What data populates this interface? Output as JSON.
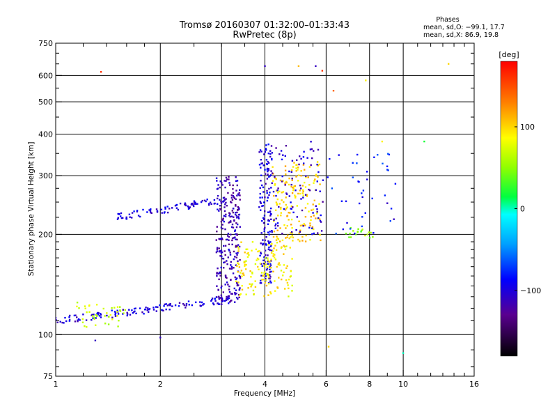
{
  "title": "Tromsø 20160307 01:32:00–01:33:43",
  "subtitle": "RwPretec (8p)",
  "stats": {
    "header": "Phases",
    "line_o": "mean, sd,O: −99.1, 17.7",
    "line_x": "mean, sd,X:  86.9, 19.8"
  },
  "colorbar": {
    "unit": "[deg]",
    "ticks": [
      {
        "value": 100,
        "label": "100"
      },
      {
        "value": 0,
        "label": "0"
      },
      {
        "value": -100,
        "label": "−100"
      }
    ],
    "range": [
      -180,
      180
    ]
  },
  "chart_data": {
    "type": "scatter",
    "title": "Tromsø 20160307 01:32:00–01:33:43",
    "subtitle": "RwPretec (8p)",
    "xlabel": "Frequency [MHz]",
    "ylabel": "Stationary phase Virtual Height [km]",
    "xscale": "log",
    "yscale": "log",
    "xlim": [
      1,
      16
    ],
    "ylim": [
      75,
      750
    ],
    "xticks": [
      {
        "value": 1,
        "label": "1"
      },
      {
        "value": 2,
        "label": "2"
      },
      {
        "value": 4,
        "label": "4"
      },
      {
        "value": 6,
        "label": "6"
      },
      {
        "value": 8,
        "label": "8"
      },
      {
        "value": 10,
        "label": "10"
      },
      {
        "value": 16,
        "label": "16"
      }
    ],
    "yticks": [
      {
        "value": 75,
        "label": "75"
      },
      {
        "value": 100,
        "label": "100"
      },
      {
        "value": 200,
        "label": "200"
      },
      {
        "value": 300,
        "label": "300"
      },
      {
        "value": 400,
        "label": "400"
      },
      {
        "value": 500,
        "label": "500"
      },
      {
        "value": 600,
        "label": "600"
      },
      {
        "value": 750,
        "label": "750"
      }
    ],
    "grid_x": [
      2,
      3,
      4,
      6,
      8,
      10
    ],
    "grid_y": [
      100,
      200,
      300,
      400,
      500,
      600
    ],
    "color_encoding": "phase in degrees (colorbar)",
    "clusters": [
      {
        "desc": "O-trace lower",
        "x_range": [
          1.0,
          3.3
        ],
        "y_start": 110,
        "y_end": 128,
        "phase": -100,
        "n": 140
      },
      {
        "desc": "low-frequency patch",
        "x_range": [
          1.15,
          1.6
        ],
        "y_range": [
          105,
          125
        ],
        "phase": 70,
        "n": 40
      },
      {
        "desc": "O-trace upper",
        "x_range": [
          1.5,
          3.1
        ],
        "y_start": 225,
        "y_end": 255,
        "phase": -100,
        "n": 90
      },
      {
        "desc": "spread F vertical",
        "x_range": [
          2.9,
          3.4
        ],
        "y_range": [
          125,
          300
        ],
        "phase": -115,
        "n": 260
      },
      {
        "desc": "spread F column 4 MHz",
        "x_range": [
          3.85,
          4.2
        ],
        "y_range": [
          140,
          380
        ],
        "phase": -100,
        "n": 160
      },
      {
        "desc": "X-mode cloud",
        "x_range": [
          3.3,
          4.8
        ],
        "y_range": [
          130,
          190
        ],
        "phase": 90,
        "n": 150
      },
      {
        "desc": "X-mode upper cloud",
        "x_range": [
          4.2,
          5.8
        ],
        "y_range": [
          190,
          330
        ],
        "phase": 100,
        "n": 170
      },
      {
        "desc": "blue cloud 4.2-6 MHz",
        "x_range": [
          4.2,
          5.9
        ],
        "y_range": [
          200,
          380
        ],
        "phase": -105,
        "n": 90
      },
      {
        "desc": "green/yellow patch 7-8 MHz",
        "x_range": [
          6.8,
          8.2
        ],
        "y_range": [
          195,
          210
        ],
        "phase": 50,
        "n": 20
      },
      {
        "desc": "scattered high-frequency points",
        "x_range": [
          6.0,
          9.5
        ],
        "y_range": [
          200,
          350
        ],
        "phase": -80,
        "n": 40
      }
    ],
    "outliers": [
      {
        "x": 1.35,
        "y": 615,
        "phase": 160
      },
      {
        "x": 4.0,
        "y": 640,
        "phase": -110
      },
      {
        "x": 5.0,
        "y": 640,
        "phase": 110
      },
      {
        "x": 5.6,
        "y": 640,
        "phase": -110
      },
      {
        "x": 5.85,
        "y": 620,
        "phase": 160
      },
      {
        "x": 6.3,
        "y": 540,
        "phase": 140
      },
      {
        "x": 7.8,
        "y": 580,
        "phase": 90
      },
      {
        "x": 13.5,
        "y": 650,
        "phase": 100
      },
      {
        "x": 1.3,
        "y": 96,
        "phase": -110
      },
      {
        "x": 2.0,
        "y": 98,
        "phase": -110
      },
      {
        "x": 6.1,
        "y": 92,
        "phase": 100
      },
      {
        "x": 10.0,
        "y": 88,
        "phase": 0
      },
      {
        "x": 8.7,
        "y": 380,
        "phase": 90
      },
      {
        "x": 11.5,
        "y": 380,
        "phase": 20
      },
      {
        "x": 9.0,
        "y": 248,
        "phase": -110
      },
      {
        "x": 9.4,
        "y": 222,
        "phase": -110
      }
    ]
  }
}
